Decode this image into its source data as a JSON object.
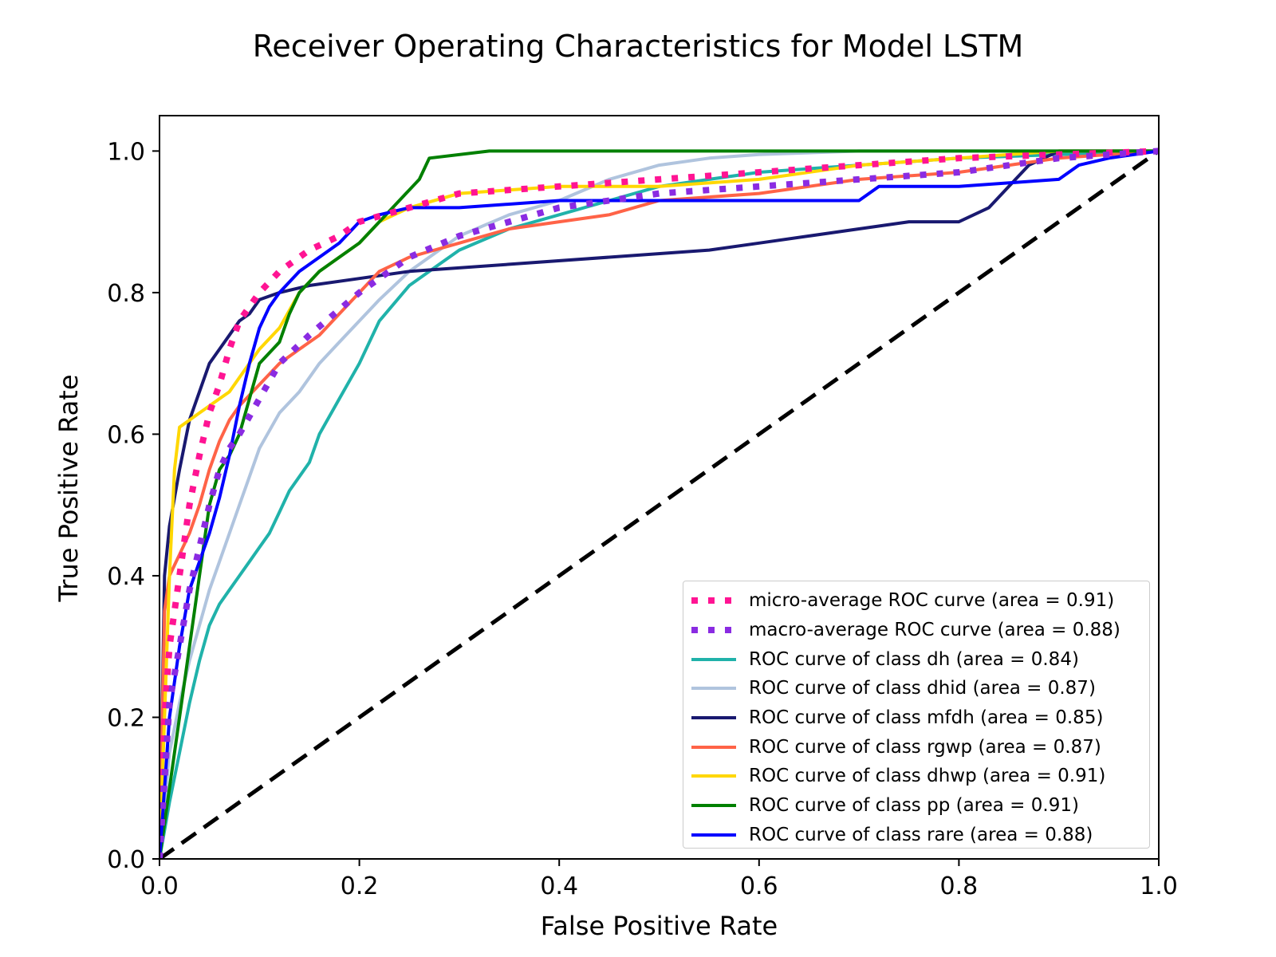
{
  "chart_data": {
    "type": "line",
    "title": "Receiver Operating Characteristics for Model LSTM",
    "xlabel": "False Positive Rate",
    "ylabel": "True Positive Rate",
    "xlim": [
      0.0,
      1.0
    ],
    "ylim": [
      0.0,
      1.05
    ],
    "xticks": [
      "0.0",
      "0.2",
      "0.4",
      "0.6",
      "0.8",
      "1.0"
    ],
    "yticks": [
      "0.0",
      "0.2",
      "0.4",
      "0.6",
      "0.8",
      "1.0"
    ],
    "grid": false,
    "legend_position": "lower right",
    "series": [
      {
        "name": "micro-average ROC curve (area = 0.91)",
        "color": "#ff1493",
        "style": "dotted",
        "x": [
          0,
          0.005,
          0.01,
          0.02,
          0.03,
          0.04,
          0.05,
          0.06,
          0.07,
          0.08,
          0.1,
          0.12,
          0.15,
          0.18,
          0.2,
          0.25,
          0.3,
          0.4,
          0.5,
          0.6,
          0.7,
          0.8,
          0.9,
          1.0
        ],
        "y": [
          0,
          0.2,
          0.3,
          0.4,
          0.5,
          0.57,
          0.63,
          0.67,
          0.72,
          0.76,
          0.8,
          0.83,
          0.86,
          0.88,
          0.9,
          0.92,
          0.94,
          0.95,
          0.96,
          0.97,
          0.98,
          0.99,
          0.995,
          1.0
        ]
      },
      {
        "name": "macro-average ROC curve (area = 0.88)",
        "color": "#8a2be2",
        "style": "dotted",
        "x": [
          0,
          0.01,
          0.02,
          0.03,
          0.04,
          0.05,
          0.06,
          0.07,
          0.08,
          0.1,
          0.12,
          0.15,
          0.2,
          0.25,
          0.3,
          0.35,
          0.4,
          0.5,
          0.6,
          0.7,
          0.8,
          0.9,
          1.0
        ],
        "y": [
          0,
          0.22,
          0.3,
          0.38,
          0.44,
          0.5,
          0.55,
          0.58,
          0.6,
          0.65,
          0.7,
          0.74,
          0.8,
          0.85,
          0.88,
          0.9,
          0.92,
          0.94,
          0.95,
          0.96,
          0.97,
          0.99,
          1.0
        ]
      },
      {
        "name": "ROC curve of class dh (area = 0.84)",
        "color": "#20b2aa",
        "style": "solid",
        "x": [
          0,
          0.01,
          0.02,
          0.03,
          0.04,
          0.05,
          0.06,
          0.07,
          0.08,
          0.09,
          0.1,
          0.11,
          0.12,
          0.13,
          0.15,
          0.16,
          0.18,
          0.2,
          0.22,
          0.25,
          0.28,
          0.3,
          0.35,
          0.4,
          0.45,
          0.5,
          0.6,
          0.7,
          0.8,
          0.9,
          1.0
        ],
        "y": [
          0,
          0.08,
          0.15,
          0.22,
          0.28,
          0.33,
          0.36,
          0.38,
          0.4,
          0.42,
          0.44,
          0.46,
          0.49,
          0.52,
          0.56,
          0.6,
          0.65,
          0.7,
          0.76,
          0.81,
          0.84,
          0.86,
          0.89,
          0.91,
          0.93,
          0.95,
          0.97,
          0.98,
          0.99,
          0.995,
          1.0
        ]
      },
      {
        "name": "ROC curve of class dhid (area = 0.87)",
        "color": "#b0c4de",
        "style": "solid",
        "x": [
          0,
          0.01,
          0.02,
          0.03,
          0.04,
          0.05,
          0.06,
          0.07,
          0.08,
          0.09,
          0.1,
          0.12,
          0.14,
          0.16,
          0.18,
          0.2,
          0.22,
          0.25,
          0.3,
          0.35,
          0.4,
          0.45,
          0.5,
          0.55,
          0.6,
          0.7,
          0.8,
          0.9,
          1.0
        ],
        "y": [
          0,
          0.15,
          0.22,
          0.28,
          0.33,
          0.38,
          0.42,
          0.46,
          0.5,
          0.54,
          0.58,
          0.63,
          0.66,
          0.7,
          0.73,
          0.76,
          0.79,
          0.83,
          0.88,
          0.91,
          0.93,
          0.96,
          0.98,
          0.99,
          0.995,
          1.0,
          1.0,
          1.0,
          1.0
        ]
      },
      {
        "name": "ROC curve of class mfdh (area = 0.85)",
        "color": "#191970",
        "style": "solid",
        "x": [
          0,
          0.005,
          0.01,
          0.02,
          0.03,
          0.04,
          0.05,
          0.06,
          0.07,
          0.08,
          0.09,
          0.1,
          0.12,
          0.15,
          0.2,
          0.25,
          0.35,
          0.45,
          0.55,
          0.6,
          0.65,
          0.7,
          0.75,
          0.8,
          0.83,
          0.85,
          0.87,
          0.9,
          1.0
        ],
        "y": [
          0,
          0.4,
          0.47,
          0.55,
          0.62,
          0.66,
          0.7,
          0.72,
          0.74,
          0.76,
          0.77,
          0.79,
          0.8,
          0.81,
          0.82,
          0.83,
          0.84,
          0.85,
          0.86,
          0.87,
          0.88,
          0.89,
          0.9,
          0.9,
          0.92,
          0.95,
          0.98,
          1.0,
          1.0
        ]
      },
      {
        "name": "ROC curve of class rgwp (area = 0.87)",
        "color": "#ff6347",
        "style": "solid",
        "x": [
          0,
          0.005,
          0.01,
          0.02,
          0.03,
          0.04,
          0.05,
          0.06,
          0.07,
          0.08,
          0.1,
          0.12,
          0.14,
          0.16,
          0.18,
          0.2,
          0.22,
          0.25,
          0.3,
          0.35,
          0.4,
          0.45,
          0.5,
          0.6,
          0.7,
          0.8,
          0.9,
          1.0
        ],
        "y": [
          0,
          0.35,
          0.4,
          0.43,
          0.46,
          0.5,
          0.55,
          0.59,
          0.62,
          0.64,
          0.67,
          0.7,
          0.72,
          0.74,
          0.77,
          0.8,
          0.83,
          0.85,
          0.87,
          0.89,
          0.9,
          0.91,
          0.93,
          0.94,
          0.96,
          0.97,
          0.99,
          1.0
        ]
      },
      {
        "name": "ROC curve of class dhwp (area = 0.91)",
        "color": "#ffd700",
        "style": "solid",
        "x": [
          0,
          0.005,
          0.01,
          0.015,
          0.02,
          0.03,
          0.04,
          0.05,
          0.06,
          0.07,
          0.08,
          0.1,
          0.12,
          0.14,
          0.16,
          0.18,
          0.2,
          0.22,
          0.25,
          0.3,
          0.4,
          0.5,
          0.6,
          0.7,
          0.8,
          0.9,
          1.0
        ],
        "y": [
          0,
          0.2,
          0.4,
          0.55,
          0.61,
          0.62,
          0.63,
          0.64,
          0.65,
          0.66,
          0.68,
          0.72,
          0.75,
          0.8,
          0.83,
          0.85,
          0.87,
          0.9,
          0.92,
          0.94,
          0.95,
          0.95,
          0.96,
          0.98,
          0.99,
          1.0,
          1.0
        ]
      },
      {
        "name": "ROC curve of class pp (area = 0.91)",
        "color": "#008000",
        "style": "solid",
        "x": [
          0,
          0.01,
          0.02,
          0.03,
          0.04,
          0.05,
          0.06,
          0.07,
          0.08,
          0.09,
          0.1,
          0.12,
          0.13,
          0.14,
          0.16,
          0.18,
          0.2,
          0.22,
          0.24,
          0.26,
          0.27,
          0.33,
          0.4,
          0.5,
          0.6,
          0.7,
          0.8,
          0.9,
          1.0
        ],
        "y": [
          0,
          0.1,
          0.2,
          0.3,
          0.4,
          0.5,
          0.55,
          0.57,
          0.6,
          0.65,
          0.7,
          0.73,
          0.77,
          0.8,
          0.83,
          0.85,
          0.87,
          0.9,
          0.93,
          0.96,
          0.99,
          1.0,
          1.0,
          1.0,
          1.0,
          1.0,
          1.0,
          1.0,
          1.0
        ]
      },
      {
        "name": "ROC curve of class rare (area = 0.88)",
        "color": "#0000ff",
        "style": "solid",
        "x": [
          0,
          0.005,
          0.01,
          0.02,
          0.03,
          0.04,
          0.05,
          0.06,
          0.07,
          0.08,
          0.09,
          0.1,
          0.11,
          0.12,
          0.14,
          0.16,
          0.18,
          0.2,
          0.22,
          0.25,
          0.3,
          0.4,
          0.5,
          0.6,
          0.7,
          0.72,
          0.8,
          0.9,
          0.92,
          0.95,
          1.0
        ],
        "y": [
          0,
          0.1,
          0.2,
          0.3,
          0.38,
          0.42,
          0.46,
          0.51,
          0.57,
          0.64,
          0.7,
          0.75,
          0.78,
          0.8,
          0.83,
          0.85,
          0.87,
          0.9,
          0.91,
          0.92,
          0.92,
          0.93,
          0.93,
          0.93,
          0.93,
          0.95,
          0.95,
          0.96,
          0.98,
          0.99,
          1.0
        ]
      },
      {
        "name": "",
        "color": "#000000",
        "style": "dashed",
        "legend": false,
        "x": [
          0,
          1
        ],
        "y": [
          0,
          1
        ]
      }
    ]
  }
}
